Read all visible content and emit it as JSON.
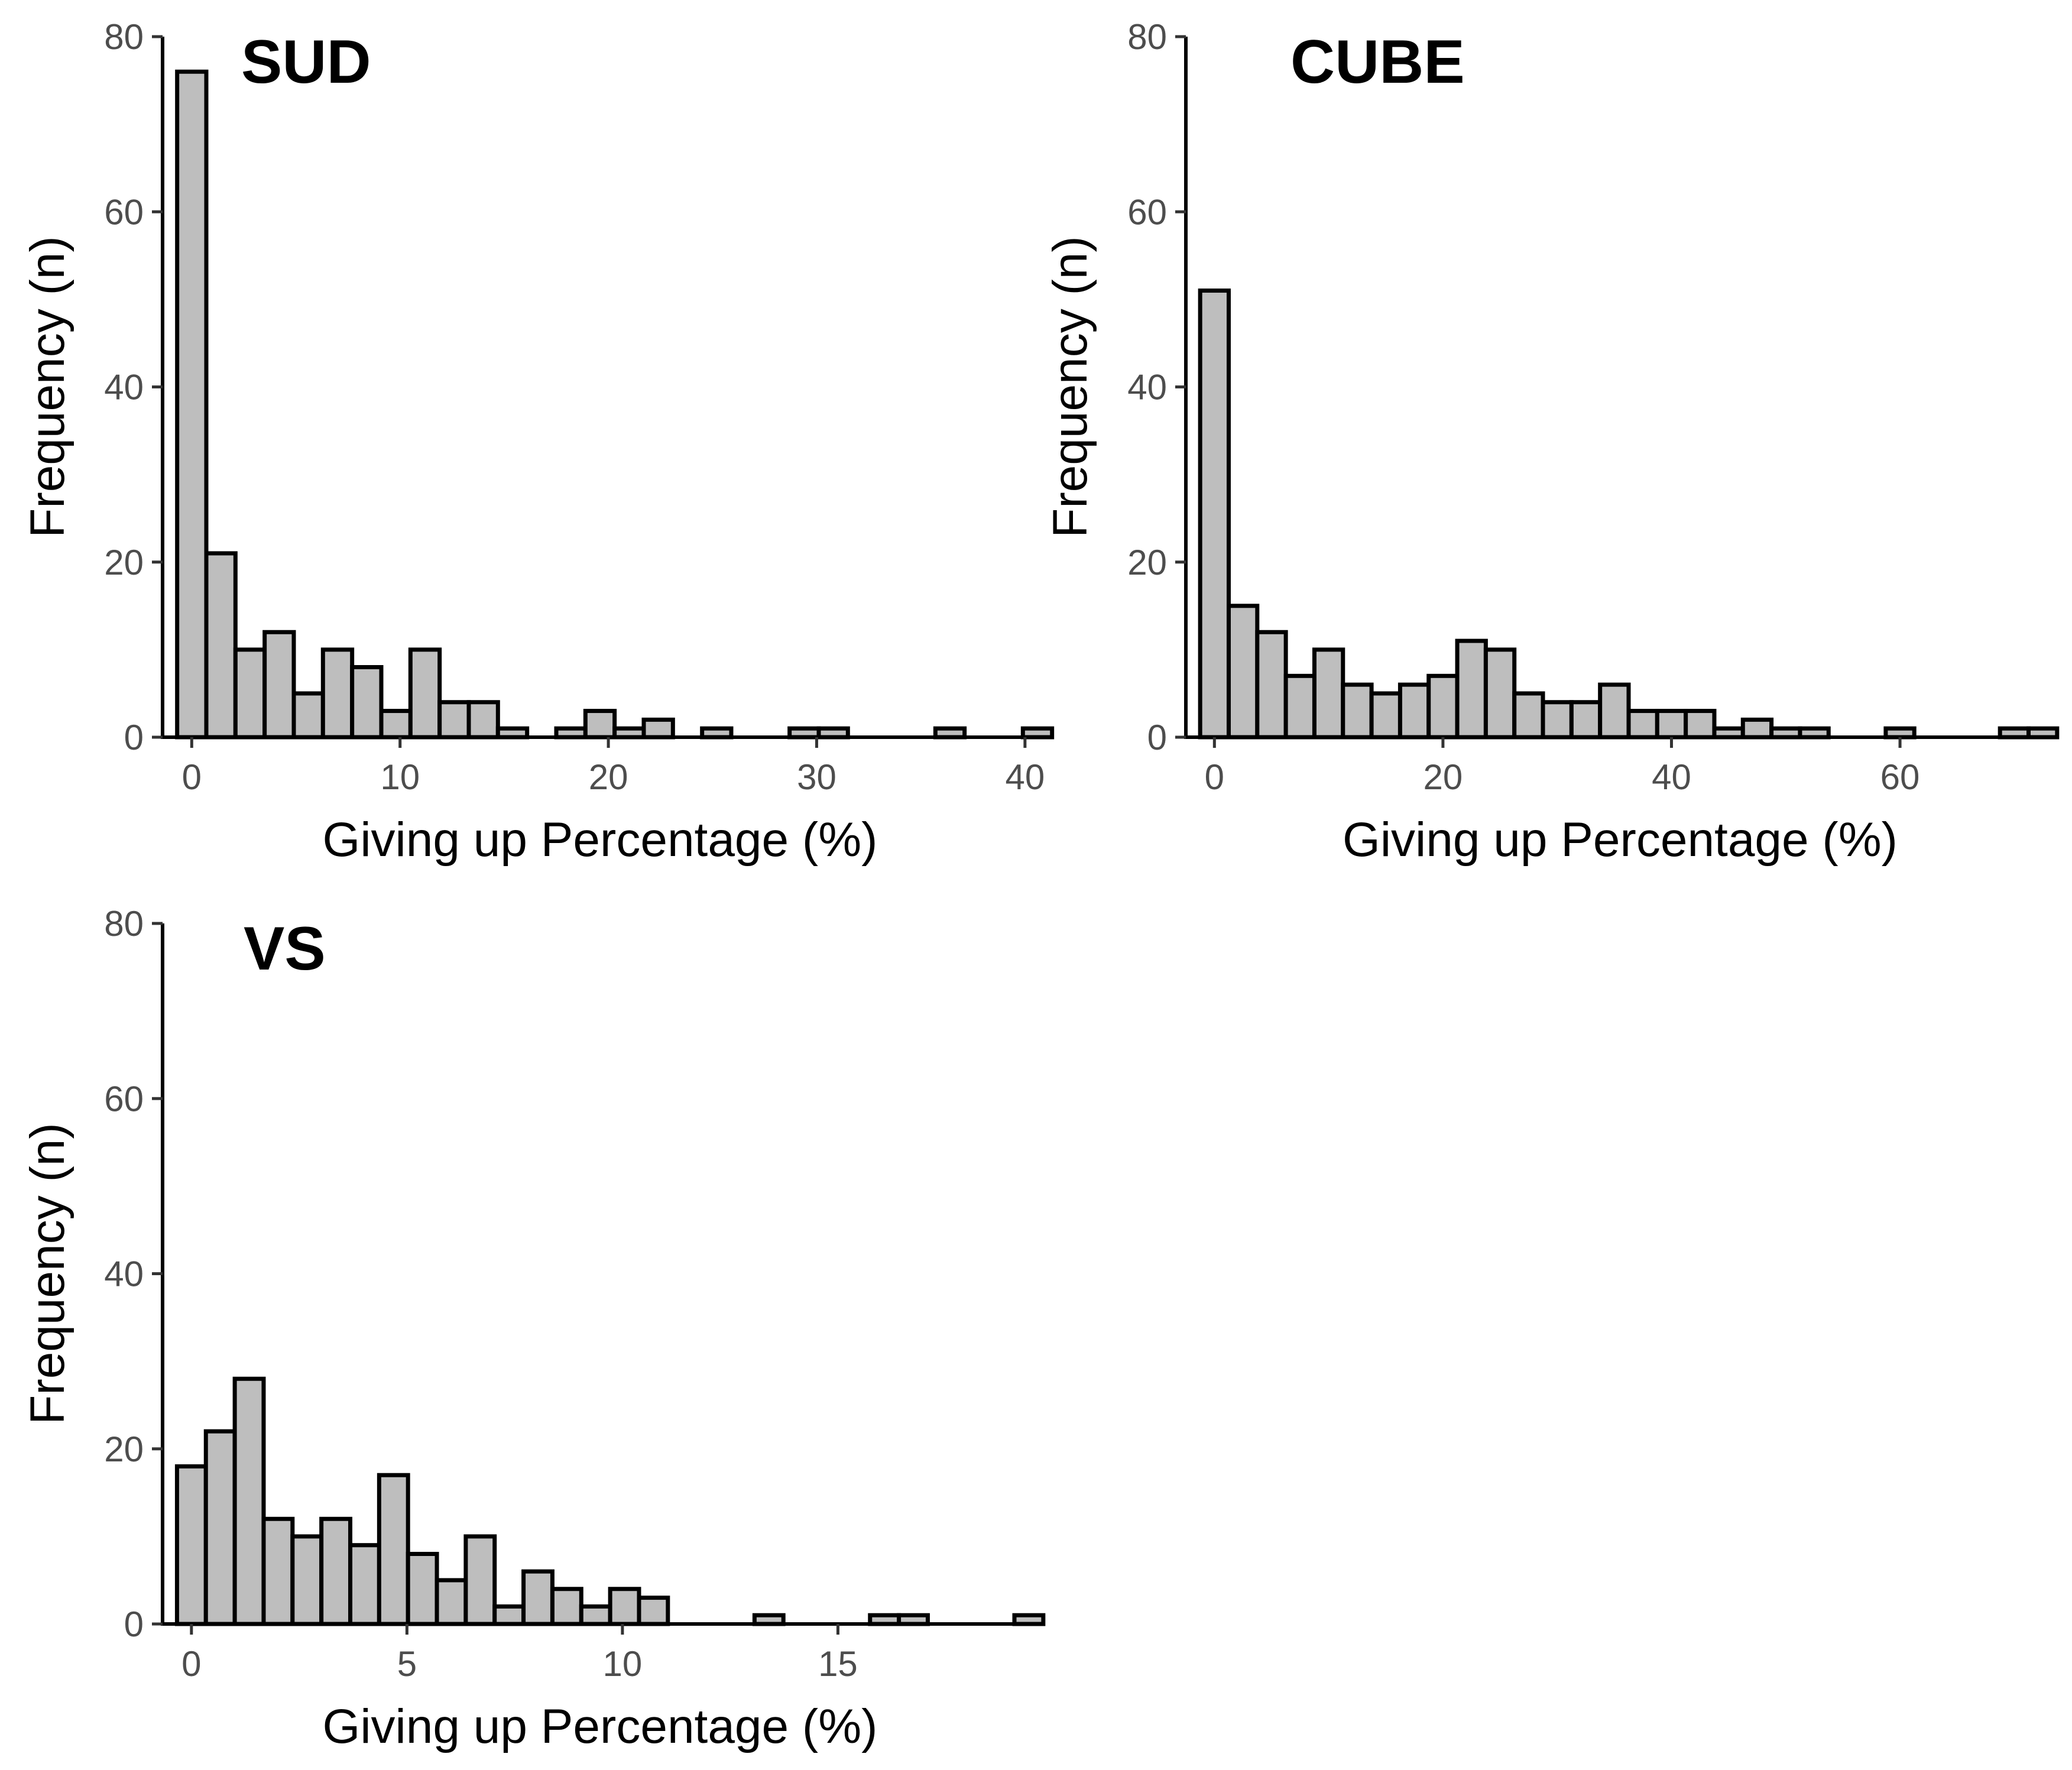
{
  "chart_data": [
    {
      "type": "bar",
      "title": "SUD",
      "xlabel": "Giving up Percentage (%)",
      "ylabel": "Frequency (n)",
      "bin_start": -0.7,
      "bin_width": 1.4,
      "values": [
        76,
        21,
        10,
        12,
        5,
        10,
        8,
        3,
        10,
        4,
        4,
        1,
        0,
        1,
        3,
        1,
        2,
        0,
        1,
        0,
        0,
        1,
        1,
        0,
        0,
        0,
        1,
        0,
        0,
        1
      ],
      "xlim": [
        -1.4,
        40.6
      ],
      "ylim": [
        0,
        80
      ],
      "xticks": [
        0,
        10,
        20,
        30,
        40
      ],
      "yticks": [
        0,
        20,
        40,
        60,
        80
      ]
    },
    {
      "type": "bar",
      "title": "CUBE",
      "xlabel": "Giving up Percentage (%)",
      "ylabel": "Frequency (n)",
      "bin_start": -1.25,
      "bin_width": 2.5,
      "values": [
        51,
        15,
        12,
        7,
        10,
        6,
        5,
        6,
        7,
        11,
        10,
        5,
        4,
        4,
        6,
        3,
        3,
        3,
        1,
        2,
        1,
        1,
        0,
        0,
        1,
        0,
        0,
        0,
        1,
        1
      ],
      "xlim": [
        -2.5,
        73.5
      ],
      "ylim": [
        0,
        80
      ],
      "xticks": [
        0,
        20,
        40,
        60
      ],
      "yticks": [
        0,
        20,
        40,
        60,
        80
      ]
    },
    {
      "type": "bar",
      "title": "VS",
      "xlabel": "Giving up Percentage (%)",
      "ylabel": "Frequency (n)",
      "bin_start": -0.335,
      "bin_width": 0.67,
      "values": [
        18,
        22,
        28,
        12,
        10,
        12,
        9,
        17,
        8,
        5,
        10,
        2,
        6,
        4,
        2,
        4,
        3,
        0,
        0,
        0,
        1,
        0,
        0,
        0,
        1,
        1,
        0,
        0,
        0,
        1
      ],
      "xlim": [
        -0.67,
        19.63
      ],
      "ylim": [
        0,
        80
      ],
      "xticks": [
        0,
        5,
        10,
        15
      ],
      "yticks": [
        0,
        20,
        40,
        60,
        80
      ]
    }
  ]
}
